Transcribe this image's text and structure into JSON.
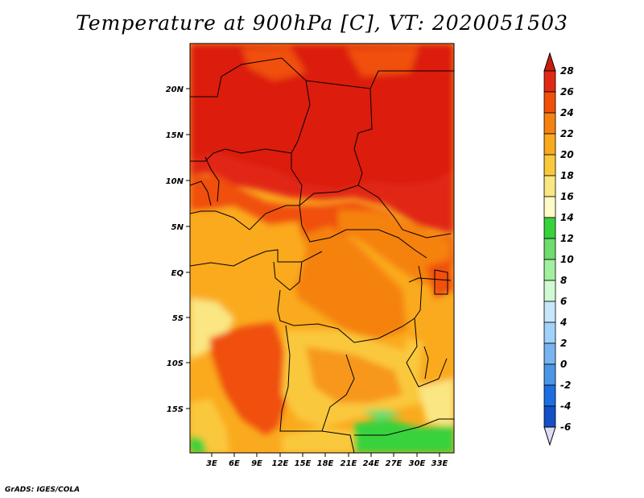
{
  "title": "Temperature at 900hPa [C], VT: 2020051503",
  "credit": "GrADS: IGES/COLA",
  "map": {
    "lat_labels": [
      "20N",
      "15N",
      "10N",
      "5N",
      "EQ",
      "5S",
      "10S",
      "15S"
    ],
    "lon_labels": [
      "3E",
      "6E",
      "9E",
      "12E",
      "15E",
      "18E",
      "21E",
      "24E",
      "27E",
      "30E",
      "33E"
    ]
  },
  "colorbar": {
    "labels": [
      "28",
      "26",
      "24",
      "22",
      "20",
      "18",
      "16",
      "14",
      "12",
      "10",
      "8",
      "6",
      "4",
      "2",
      "0",
      "-2",
      "-4",
      "-6"
    ],
    "colors": [
      "#c81e0a",
      "#e12814",
      "#f0500a",
      "#f5820f",
      "#faaa1e",
      "#fac83c",
      "#fae682",
      "#fffac8",
      "#37d23c",
      "#6edc6e",
      "#a0f0a0",
      "#d2fad2",
      "#c8e6fa",
      "#a0d2fa",
      "#78b4f0",
      "#4b96e6",
      "#1e6ee1",
      "#1450c8",
      "#0a28a0",
      "#0a0a6e",
      "#dcdcf5"
    ]
  }
}
